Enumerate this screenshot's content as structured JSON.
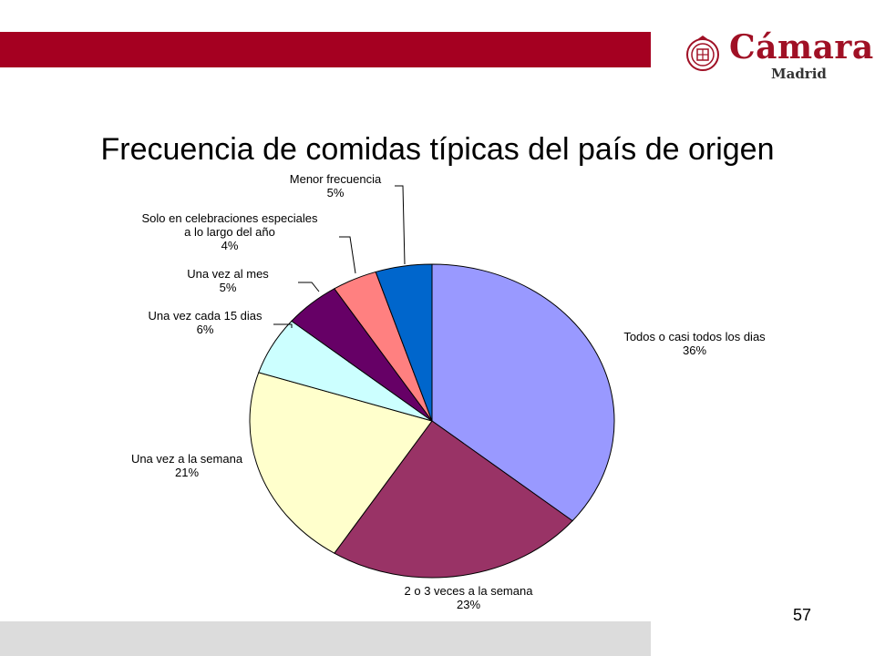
{
  "header": {
    "bar_color": "#a50021",
    "logo": {
      "word": "Cámara",
      "subtitle": "Madrid",
      "icon": "chamber-seal-icon"
    }
  },
  "footer": {
    "bar_color": "#dcdcdc",
    "page_number": "57"
  },
  "chart_data": {
    "type": "pie",
    "title": "Frecuencia de comidas típicas del país de origen",
    "start": "12 o'clock, clockwise",
    "slices": [
      {
        "lines": [
          "Todos o casi todos los dias"
        ],
        "label": "Todos o casi todos los dias",
        "percent_label": "36%",
        "value": 36,
        "color": "#9999ff"
      },
      {
        "lines": [
          "2 o 3 veces a la semana"
        ],
        "label": "2 o 3 veces a la semana",
        "percent_label": "23%",
        "value": 23,
        "color": "#993366"
      },
      {
        "lines": [
          "Una vez a la semana"
        ],
        "label": "Una vez a la semana",
        "percent_label": "21%",
        "value": 21,
        "color": "#ffffcc"
      },
      {
        "lines": [
          "Una vez cada 15 dias"
        ],
        "label": "Una vez cada 15 dias",
        "percent_label": "6%",
        "value": 6,
        "color": "#ccffff"
      },
      {
        "lines": [
          "Una vez al mes"
        ],
        "label": "Una vez al mes",
        "percent_label": "5%",
        "value": 5,
        "color": "#660066"
      },
      {
        "lines": [
          "Solo en celebraciones especiales",
          "a lo largo del año"
        ],
        "label": "Solo en celebraciones especiales a lo largo del año",
        "percent_label": "4%",
        "value": 4,
        "color": "#ff8080"
      },
      {
        "lines": [
          "Menor frecuencia"
        ],
        "label": "Menor frecuencia",
        "percent_label": "5%",
        "value": 5,
        "color": "#0066cc"
      }
    ]
  }
}
